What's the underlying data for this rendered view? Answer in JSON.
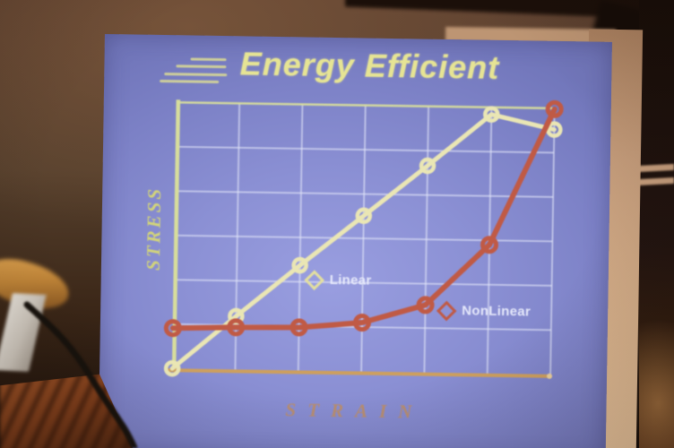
{
  "slide": {
    "title": "Energy Efficient",
    "y_axis_label": "STRESS",
    "x_axis_label": "STRAIN",
    "legend": [
      {
        "label": "Linear"
      },
      {
        "label": "NonLinear"
      }
    ]
  },
  "colors": {
    "slide_background": "#8b90d4",
    "title_text": "#e6e494",
    "axis_line": "#d7dd9c",
    "grid_line": "#dfe3f7",
    "x_axis_line": "#cd9f5e",
    "linear_series": "#eae6b4",
    "nonlinear_series": "#c05a45",
    "legend_text": "#e6e9fb",
    "stress_label": "#d2d47a",
    "strain_label": "#c28e5a"
  },
  "chart_data": {
    "type": "line",
    "title": "Energy Efficient",
    "xlabel": "STRAIN",
    "ylabel": "STRESS",
    "x": [
      0,
      1,
      2,
      3,
      4,
      5,
      6
    ],
    "series": [
      {
        "name": "Linear",
        "color": "#eae6b4",
        "marker": "open-circle",
        "values": [
          0,
          1.2,
          2.37,
          3.51,
          4.66,
          5.84,
          5.52
        ]
      },
      {
        "name": "NonLinear",
        "color": "#c05a45",
        "marker": "open-circle",
        "values": [
          0.91,
          0.95,
          0.97,
          1.1,
          1.52,
          2.9,
          5.98
        ]
      }
    ],
    "xlim": [
      0,
      6
    ],
    "ylim": [
      0,
      6
    ],
    "grid": true,
    "tick_labels_visible": false,
    "legend_position": "inside-plot"
  }
}
